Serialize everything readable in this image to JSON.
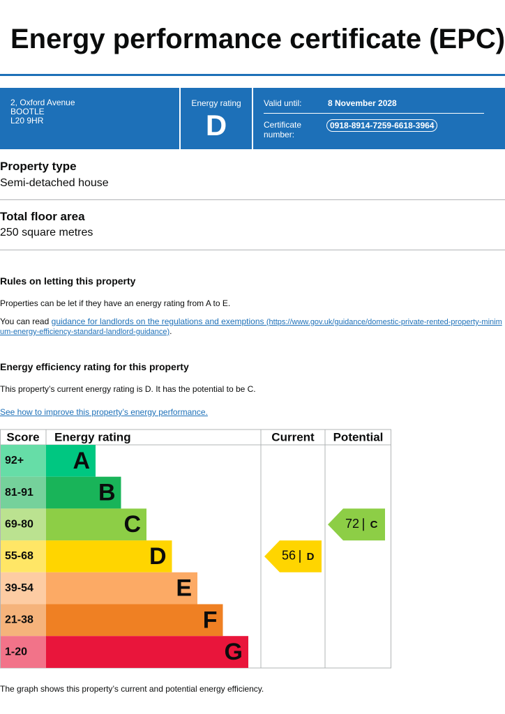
{
  "header": {
    "title": "Energy performance certificate (EPC)"
  },
  "summary": {
    "address": [
      "2, Oxford Avenue",
      "BOOTLE",
      "L20 9HR"
    ],
    "rating_label": "Energy rating",
    "rating": "D",
    "valid_label": "Valid until:",
    "valid_value": "8 November 2028",
    "certificate_label": "Certificate number:",
    "certificate_value": "0918-8914-7259-6618-3964"
  },
  "property_type": {
    "heading": "Property type",
    "value": "Semi-detached house"
  },
  "floor_area": {
    "heading": "Total floor area",
    "value": "250 square metres"
  },
  "letting": {
    "heading": "Rules on letting this property",
    "text": "Properties can be let if they have an energy rating from A to E.",
    "link_intro": "You can read",
    "link_text": "guidance for landlords on the regulations and exemptions",
    "link_url": "(https://www.gov.uk/guidance/domestic-private-rented-property-minimum-energy-efficiency-standard-landlord-guidance)"
  },
  "efficiency": {
    "heading": "Energy efficiency rating for this property",
    "text": "This property’s current energy rating is D. It has the potential to be C.",
    "link": "See how to improve this property’s energy performance."
  },
  "chart": {
    "headers": [
      "Score",
      "Energy rating",
      "Current",
      "Potential"
    ],
    "bands": [
      {
        "score": "92+",
        "letter": "A",
        "color": "#00c781",
        "tint": "#66dda7"
      },
      {
        "score": "81-91",
        "letter": "B",
        "color": "#19b459",
        "tint": "#75d19b"
      },
      {
        "score": "69-80",
        "letter": "C",
        "color": "#8dce46",
        "tint": "#bbe290"
      },
      {
        "score": "55-68",
        "letter": "D",
        "color": "#ffd500",
        "tint": "#ffe666"
      },
      {
        "score": "39-54",
        "letter": "E",
        "color": "#fcaa65",
        "tint": "#fdcca3"
      },
      {
        "score": "21-38",
        "letter": "F",
        "color": "#ef8023",
        "tint": "#f5b37b"
      },
      {
        "score": "1-20",
        "letter": "G",
        "color": "#e9153b",
        "tint": "#f27389"
      }
    ],
    "current": {
      "score": 56,
      "band": "D"
    },
    "potential": {
      "score": 72,
      "band": "C"
    },
    "caption": "The graph shows this property’s current and potential energy efficiency."
  }
}
